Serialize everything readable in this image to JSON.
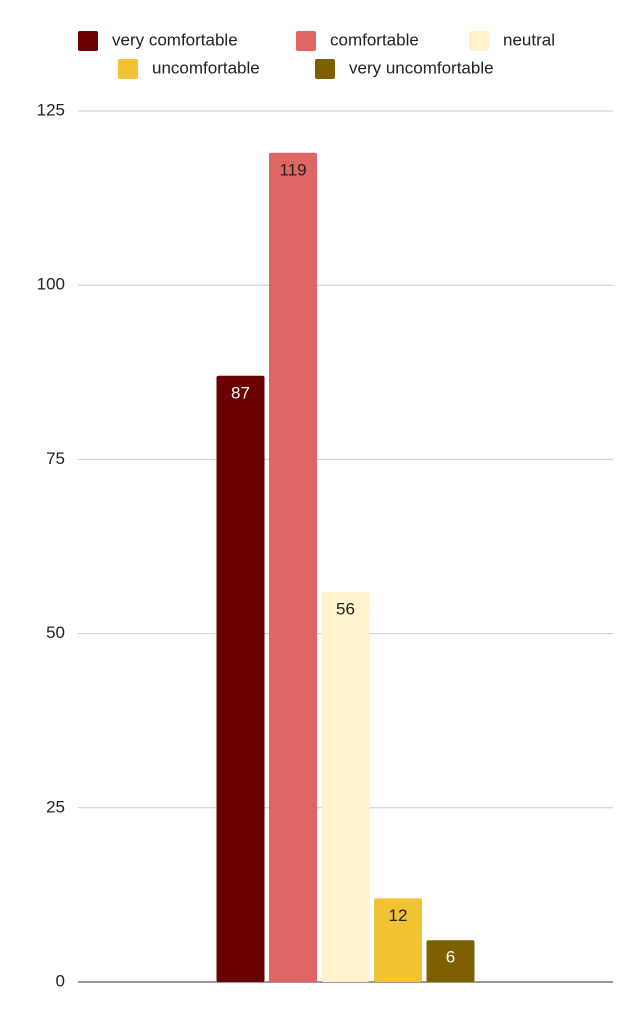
{
  "chart_data": {
    "type": "bar",
    "categories": [
      null
    ],
    "series": [
      {
        "name": "very comfortable",
        "color": "#6b0000",
        "values": [
          87
        ]
      },
      {
        "name": "comfortable",
        "color": "#e06666",
        "values": [
          119
        ]
      },
      {
        "name": "neutral",
        "color": "#fff2cc",
        "values": [
          56
        ]
      },
      {
        "name": "uncomfortable",
        "color": "#f1c232",
        "values": [
          12
        ]
      },
      {
        "name": "very uncomfortable",
        "color": "#7f6000",
        "values": [
          6
        ]
      }
    ],
    "ylim": [
      0,
      125
    ],
    "yticks": [
      0,
      25,
      50,
      75,
      100,
      125
    ],
    "grid": true,
    "legend": "top"
  }
}
